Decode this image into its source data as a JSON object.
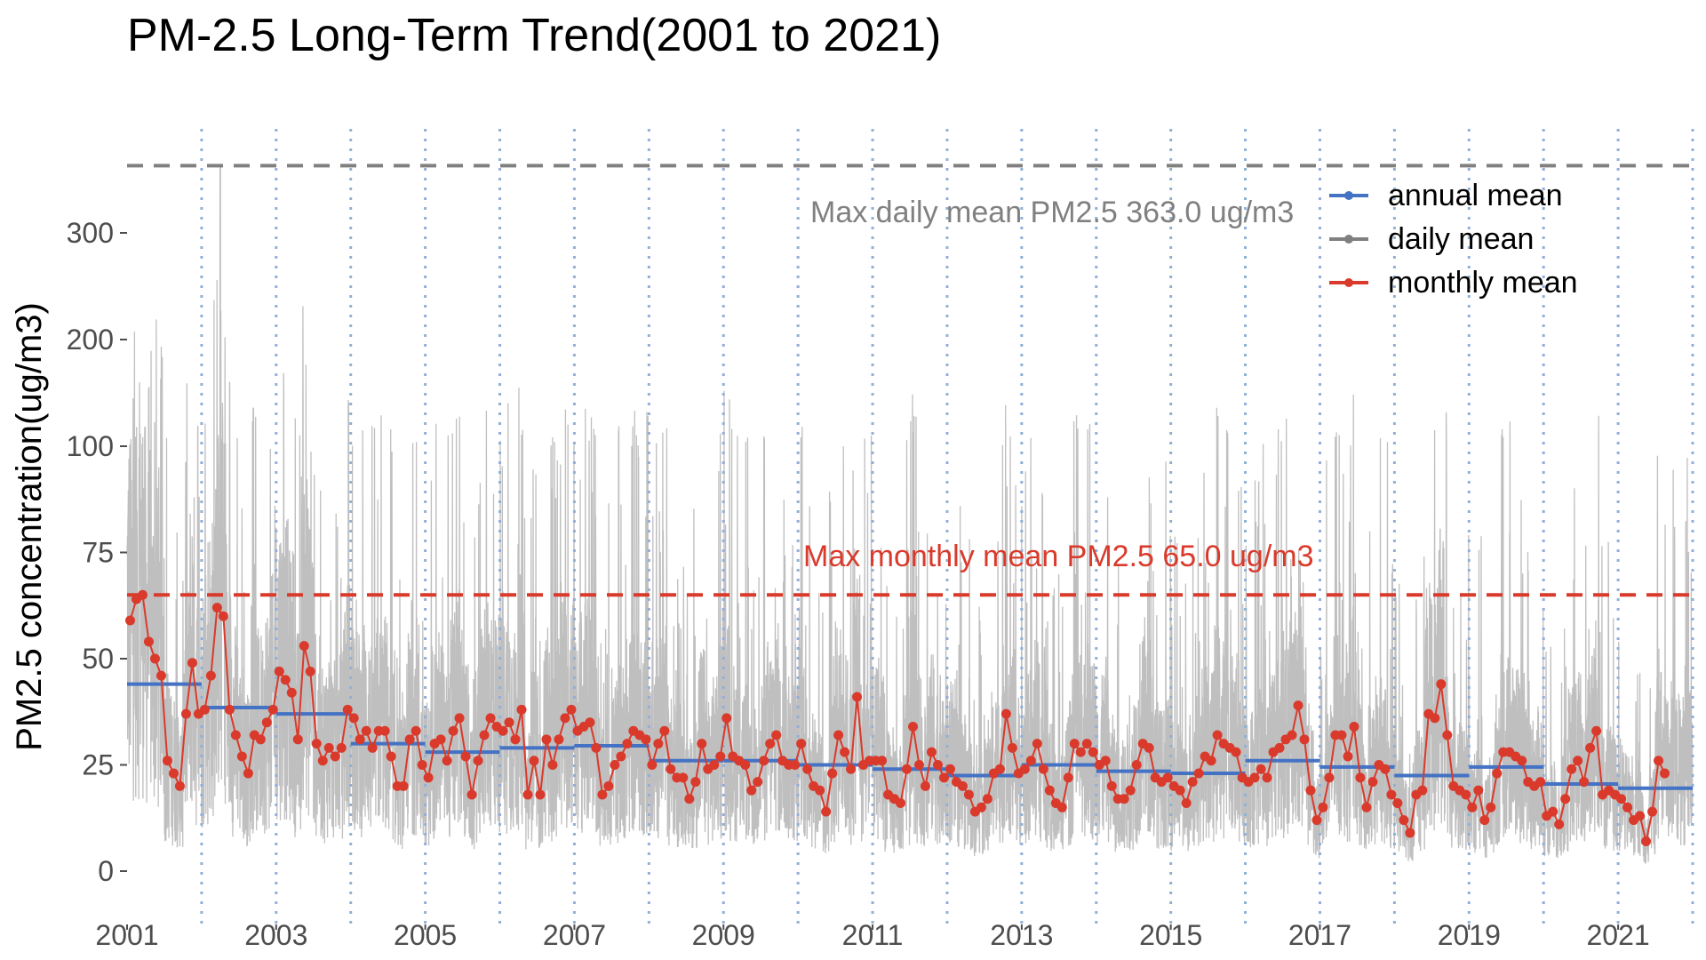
{
  "chart_data": {
    "type": "line",
    "title": "PM-2.5 Long-Term Trend(2001 to 2021)",
    "xlabel": "",
    "ylabel": "PM2.5 concentration(ug/m3)",
    "xlim": [
      2001.0,
      2022.0
    ],
    "ylim": [
      -15,
      372
    ],
    "x_ticks": [
      "2001",
      "2003",
      "2005",
      "2007",
      "2009",
      "2011",
      "2013",
      "2015",
      "2017",
      "2019",
      "2021"
    ],
    "y_ticks": [
      "0",
      "25",
      "50",
      "75",
      "100",
      "200",
      "300"
    ],
    "y_tick_values": [
      0,
      25,
      50,
      75,
      100,
      200,
      300
    ],
    "y_scale": "piecewise: linear 0-100 with 25 per step, 100-300 with 100 per step",
    "grid": false,
    "year_boundaries": [
      2002,
      2003,
      2004,
      2005,
      2006,
      2007,
      2008,
      2009,
      2010,
      2011,
      2012,
      2013,
      2014,
      2015,
      2016,
      2017,
      2018,
      2019,
      2020,
      2021,
      2022
    ],
    "legend": {
      "position": "top-right",
      "entries": [
        {
          "label": "annual mean",
          "color": "#4472c4"
        },
        {
          "label": "daily mean",
          "color": "#808080"
        },
        {
          "label": "monthly mean",
          "color": "#d93a2b"
        }
      ]
    },
    "annotations": [
      {
        "text": "Max daily mean PM2.5 363.0 ug/m3",
        "value": 363.0,
        "color": "#808080"
      },
      {
        "text": "Max monthly mean PM2.5 65.0 ug/m3",
        "value": 65.0,
        "color": "#d93a2b"
      }
    ],
    "series": [
      {
        "name": "annual mean",
        "color": "#4472c4",
        "years": [
          2001,
          2002,
          2003,
          2004,
          2005,
          2006,
          2007,
          2008,
          2009,
          2010,
          2011,
          2012,
          2013,
          2014,
          2015,
          2016,
          2017,
          2018,
          2019,
          2020,
          2021
        ],
        "values": [
          44,
          38.5,
          37,
          30,
          28,
          29,
          29.5,
          26,
          26,
          25,
          24,
          22.5,
          25,
          23.5,
          23,
          26,
          24.5,
          22.5,
          24.5,
          20.5,
          19.5
        ]
      },
      {
        "name": "monthly mean",
        "color": "#d93a2b",
        "start": "2001-01",
        "values": [
          59,
          64,
          65,
          54,
          50,
          46,
          26,
          23,
          20,
          37,
          49,
          37,
          38,
          46,
          62,
          60,
          38,
          32,
          27,
          23,
          32,
          31,
          35,
          38,
          47,
          45,
          42,
          31,
          53,
          47,
          30,
          26,
          29,
          27,
          29,
          38,
          36,
          31,
          33,
          29,
          33,
          33,
          27,
          20,
          20,
          31,
          33,
          25,
          22,
          30,
          31,
          26,
          33,
          36,
          27,
          18,
          26,
          32,
          36,
          34,
          33,
          35,
          31,
          38,
          18,
          26,
          18,
          31,
          25,
          31,
          36,
          38,
          33,
          34,
          35,
          29,
          18,
          20,
          25,
          27,
          30,
          33,
          32,
          31,
          25,
          30,
          33,
          24,
          22,
          22,
          17,
          21,
          30,
          24,
          25,
          27,
          36,
          27,
          26,
          25,
          19,
          21,
          26,
          30,
          32,
          26,
          25,
          25,
          30,
          24,
          20,
          19,
          14,
          23,
          32,
          28,
          24,
          41,
          25,
          26,
          26,
          26,
          18,
          17,
          16,
          24,
          34,
          25,
          20,
          28,
          25,
          22,
          24,
          21,
          20,
          18,
          14,
          15,
          17,
          23,
          24,
          37,
          29,
          23,
          24,
          26,
          30,
          24,
          19,
          16,
          15,
          22,
          30,
          28,
          30,
          28,
          25,
          26,
          20,
          17,
          17,
          19,
          25,
          30,
          29,
          22,
          21,
          22,
          20,
          19,
          16,
          21,
          23,
          27,
          26,
          32,
          30,
          29,
          28,
          22,
          21,
          22,
          24,
          22,
          28,
          29,
          31,
          32,
          39,
          31,
          19,
          12,
          15,
          22,
          32,
          32,
          27,
          34,
          22,
          15,
          21,
          25,
          24,
          18,
          16,
          12,
          9,
          18,
          19,
          37,
          36,
          44,
          32,
          20,
          19,
          18,
          15,
          19,
          12,
          15,
          23,
          28,
          28,
          27,
          26,
          21,
          20,
          21,
          13,
          14,
          11,
          17,
          24,
          26,
          21,
          29,
          33,
          18,
          19,
          18,
          17,
          15,
          12,
          13,
          7,
          14,
          26,
          23
        ]
      },
      {
        "name": "daily mean",
        "color": "#bfbfbf",
        "max": 363.0
      }
    ]
  }
}
